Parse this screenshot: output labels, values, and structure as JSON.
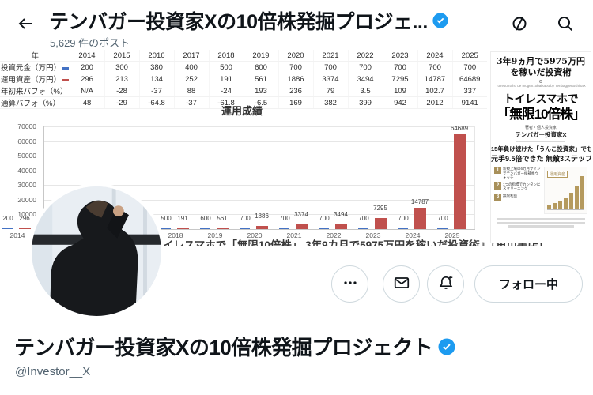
{
  "header": {
    "title": "テンバガー投資家Xの10倍株発掘プロジェ...",
    "subtitle": "5,629 件のポスト"
  },
  "banner": {
    "table": {
      "rows": [
        {
          "label": "年",
          "values": [
            "2014",
            "2015",
            "2016",
            "2017",
            "2018",
            "2019",
            "2020",
            "2021",
            "2022",
            "2023",
            "2024",
            "2025"
          ]
        },
        {
          "label": "投資元金（万円）",
          "legend": "#4472c4",
          "values": [
            "200",
            "300",
            "380",
            "400",
            "500",
            "600",
            "700",
            "700",
            "700",
            "700",
            "700",
            "700"
          ]
        },
        {
          "label": "運用資産（万円）",
          "legend": "#c0504d",
          "values": [
            "296",
            "213",
            "134",
            "252",
            "191",
            "561",
            "1886",
            "3374",
            "3494",
            "7295",
            "14787",
            "64689"
          ]
        },
        {
          "label": "年初来パフォ（%）",
          "values": [
            "N/A",
            "-28",
            "-37",
            "88",
            "-24",
            "193",
            "236",
            "79",
            "3.5",
            "109",
            "102.7",
            "337"
          ]
        },
        {
          "label": "通算パフォ（%）",
          "values": [
            "48",
            "-29",
            "-64.8",
            "-37",
            "-61.8",
            "-6.5",
            "169",
            "382",
            "399",
            "942",
            "2012",
            "9141"
          ]
        }
      ]
    },
    "caption": "著書：『トイレスマホで「無限10倍株」 3年9カ月で5975万円を稼いだ投資術』（角川書店）",
    "book": {
      "top_line1": "3年9ヵ月で5975万円",
      "top_line2": "を稼いだ投資術",
      "romaji": "Toiresumaho de mugen10baikabu by TenbaggertoshikaX",
      "title_line1": "トイレスマホで",
      "title_line2": "「無限10倍株」",
      "author_small": "著者・個人投資家",
      "author": "テンバガー投資家X",
      "band_line1": "15年負け続けた「うんこ投資家」でも",
      "band_line2": "元手9.5倍できた 無敵3ステップ",
      "mini_chart_label": "運用資産",
      "mini_chart_bars": [
        5,
        8,
        11,
        15,
        21,
        30,
        42
      ],
      "steps": [
        {
          "num": "1",
          "text": "新規上場の6カ月サインでテンバガー候補株ウォッチ"
        },
        {
          "num": "2",
          "text": "1つの指標でカンタンにスクリーニング"
        },
        {
          "num": "3",
          "text": "無限利益"
        }
      ]
    }
  },
  "chart_data": {
    "type": "bar",
    "title": "運用成績",
    "categories": [
      "2014",
      "2015",
      "2016",
      "2017",
      "2018",
      "2019",
      "2020",
      "2021",
      "2022",
      "2023",
      "2024",
      "2025"
    ],
    "series": [
      {
        "name": "投資元金（万円）",
        "color": "#4472c4",
        "values": [
          200,
          300,
          380,
          400,
          500,
          600,
          700,
          700,
          700,
          700,
          700,
          700
        ]
      },
      {
        "name": "運用資産（万円）",
        "color": "#c0504d",
        "values": [
          296,
          213,
          134,
          252,
          191,
          561,
          1886,
          3374,
          3494,
          7295,
          14787,
          64689
        ]
      }
    ],
    "ylabel": "",
    "xlabel": "",
    "ylim": [
      0,
      70000
    ],
    "yticks": [
      10000,
      20000,
      30000,
      40000,
      50000,
      60000,
      70000
    ],
    "grid": true,
    "legend_position": "none"
  },
  "actions": {
    "follow_label": "フォロー中"
  },
  "profile": {
    "name": "テンバガー投資家Xの10倍株発掘プロジェクト",
    "handle": "@Investor__X"
  },
  "colors": {
    "verified_blue": "#1d9bf0",
    "bar_blue": "#4472c4",
    "bar_red": "#c0504d",
    "border_gray": "#cfd9de",
    "text_gray": "#536471"
  }
}
